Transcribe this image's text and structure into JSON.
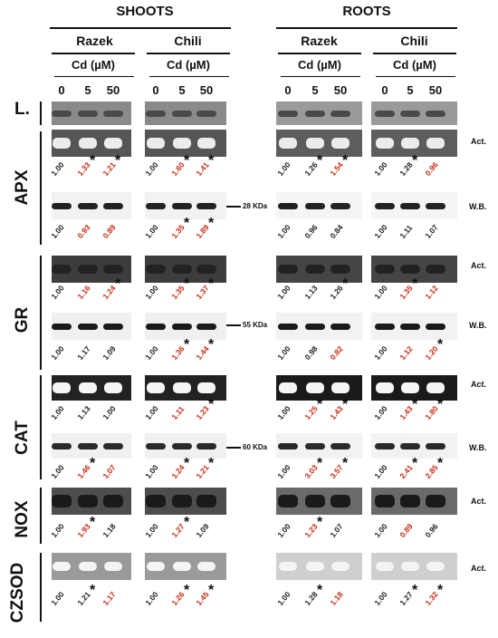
{
  "headers": {
    "shoots": "SHOOTS",
    "roots": "ROOTS"
  },
  "cultivars": [
    "Razek",
    "Chili",
    "Razek",
    "Chili"
  ],
  "cd_label": "Cd (µM)",
  "conc": [
    "0",
    "5",
    "50"
  ],
  "loading_label": "L.",
  "enzymes": [
    "APX",
    "GR",
    "CAT",
    "NOX",
    "CZSOD"
  ],
  "row_labels": {
    "act": "Act.",
    "wb": "W.B."
  },
  "kda": {
    "apx": "28 KDa",
    "gr": "55 KDa",
    "cat": "60 KDa"
  },
  "values": {
    "apx_act": [
      [
        "1.00",
        "1.33",
        "1.21",
        "1.00",
        "1.60",
        "1.41"
      ],
      [
        "1.00",
        "1.26",
        "1.54",
        "1.00",
        "1.28",
        "0.96"
      ]
    ],
    "apx_wb": [
      [
        "1.00",
        "0.93",
        "0.89",
        "1.00",
        "1.35",
        "1.89"
      ],
      [
        "1.00",
        "0.96",
        "0.84",
        "1.00",
        "1.11",
        "1.07"
      ]
    ],
    "gr_act": [
      [
        "1.00",
        "1.16",
        "1.24",
        "1.00",
        "1.35",
        "1.37"
      ],
      [
        "1.00",
        "1.13",
        "1.26",
        "1.00",
        "1.35",
        "1.12"
      ]
    ],
    "gr_wb": [
      [
        "1.00",
        "1.17",
        "1.09",
        "1.00",
        "1.36",
        "1.44"
      ],
      [
        "1.00",
        "0.98",
        "0.82",
        "1.00",
        "1.12",
        "1.20"
      ]
    ],
    "cat_act": [
      [
        "1.00",
        "1.13",
        "1.00",
        "1.00",
        "1.11",
        "1.23"
      ],
      [
        "1.00",
        "1.25",
        "1.43",
        "1.00",
        "1.43",
        "1.80"
      ]
    ],
    "cat_wb": [
      [
        "1.00",
        "1.46",
        "1.07",
        "1.00",
        "1.24",
        "1.21"
      ],
      [
        "1.00",
        "3.03",
        "3.57",
        "1.00",
        "2.41",
        "2.85"
      ]
    ],
    "nox_act": [
      [
        "1.00",
        "1.93",
        "1.18",
        "1.00",
        "1.27",
        "1.09"
      ],
      [
        "1.00",
        "1.23",
        "1.07",
        "1.00",
        "0.89",
        "0.96"
      ]
    ],
    "sod_act": [
      [
        "1.00",
        "1.21",
        "1.17",
        "1.00",
        "1.26",
        "1.45"
      ],
      [
        "1.00",
        "1.28",
        "1.18",
        "1.00",
        "1.27",
        "1.32"
      ]
    ]
  },
  "star": "*"
}
